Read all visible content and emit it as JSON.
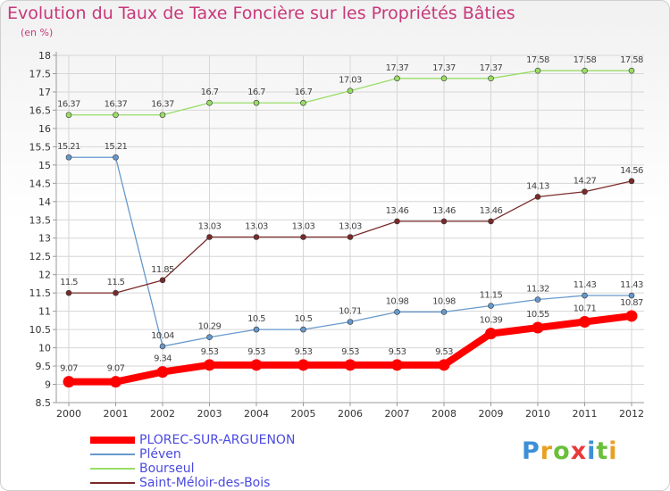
{
  "header": {
    "title": "Evolution du Taux de Taxe Foncière sur les Propriétés Bâties",
    "subtitle": "(en %)"
  },
  "logo": {
    "text": "Proxiti",
    "letter_colors": [
      "#3d8fd6",
      "#e8a020",
      "#6abf3a",
      "#e83a3a",
      "#3d8fd6",
      "#6abf3a",
      "#e8a020"
    ]
  },
  "colors": {
    "title": "#c8377a",
    "legend_text": "#4a4ae0",
    "grid": "#d6d6d6",
    "axis": "#9a9a9a",
    "value_labels": "#444444"
  },
  "chart_data": {
    "type": "line",
    "title": "Evolution du Taux de Taxe Foncière sur les Propriétés Bâties",
    "ylabel": "(en %)",
    "xlabel": "",
    "x": [
      2000,
      2001,
      2002,
      2003,
      2004,
      2005,
      2006,
      2007,
      2008,
      2009,
      2010,
      2011,
      2012
    ],
    "ylim": [
      8.5,
      18
    ],
    "yticks": [
      8.5,
      9,
      9.5,
      10,
      10.5,
      11,
      11.5,
      12,
      12.5,
      13,
      13.5,
      14,
      14.5,
      15,
      15.5,
      16,
      16.5,
      17,
      17.5,
      18
    ],
    "grid": true,
    "legend_position": "bottom-left",
    "series": [
      {
        "name": "PLOREC-SUR-ARGUENON",
        "color": "#ff0000",
        "values": [
          9.07,
          9.07,
          9.34,
          9.53,
          9.53,
          9.53,
          9.53,
          9.53,
          9.53,
          10.39,
          10.55,
          10.71,
          10.87
        ],
        "labels": [
          "9.07",
          "9.07",
          "9.34",
          "9.53",
          "9.53",
          "9.53",
          "9.53",
          "9.53",
          "9.53",
          "10.39",
          "10.55",
          "10.71",
          "10.87"
        ]
      },
      {
        "name": "Pléven",
        "color": "#6699cc",
        "values": [
          15.21,
          15.21,
          10.04,
          10.29,
          10.5,
          10.5,
          10.71,
          10.98,
          10.98,
          11.15,
          11.32,
          11.43,
          11.43
        ],
        "labels": [
          "15.21",
          "15.21",
          "10.04",
          "10.29",
          "10.5",
          "10.5",
          "10.71",
          "10.98",
          "10.98",
          "11.15",
          "11.32",
          "11.43",
          "11.43"
        ]
      },
      {
        "name": "Bourseul",
        "color": "#99dd66",
        "values": [
          16.37,
          16.37,
          16.37,
          16.7,
          16.7,
          16.7,
          17.03,
          17.37,
          17.37,
          17.37,
          17.58,
          17.58,
          17.58
        ],
        "labels": [
          "16.37",
          "16.37",
          "16.37",
          "16.7",
          "16.7",
          "16.7",
          "17.03",
          "17.37",
          "17.37",
          "17.37",
          "17.58",
          "17.58",
          "17.58"
        ]
      },
      {
        "name": "Saint-Méloir-des-Bois",
        "color": "#7a2a2a",
        "values": [
          11.5,
          11.5,
          11.85,
          13.03,
          13.03,
          13.03,
          13.03,
          13.46,
          13.46,
          13.46,
          14.13,
          14.27,
          14.56
        ],
        "labels": [
          "11.5",
          "11.5",
          "11.85",
          "13.03",
          "13.03",
          "13.03",
          "13.03",
          "13.46",
          "13.46",
          "13.46",
          "14.13",
          "14.27",
          "14.56"
        ]
      }
    ]
  }
}
